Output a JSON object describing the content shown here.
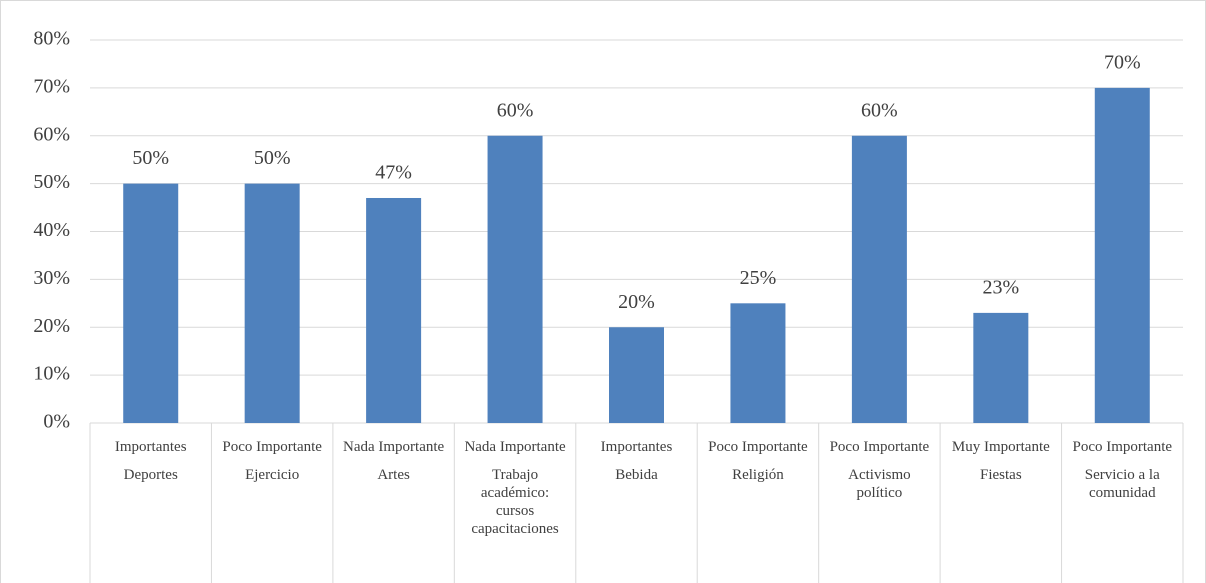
{
  "chart_data": {
    "type": "bar",
    "categories": [
      "Deportes",
      "Ejercicio",
      "Artes",
      "Trabajo académico: cursos capacitaciones",
      "Bebida",
      "Religión",
      "Activismo político",
      "Fiestas",
      "Servicio a la comunidad"
    ],
    "category_groups": [
      "Importantes",
      "Poco Importante",
      "Nada Importante",
      "Nada Importante",
      "Importantes",
      "Poco Importante",
      "Poco Importante",
      "Muy Importante",
      "Poco Importante"
    ],
    "values": [
      50,
      50,
      47,
      60,
      20,
      25,
      60,
      23,
      70
    ],
    "value_labels": [
      "50%",
      "50%",
      "47%",
      "60%",
      "20%",
      "25%",
      "60%",
      "23%",
      "70%"
    ],
    "color": "#4f81bd",
    "ylim": [
      0,
      80
    ],
    "yticks": [
      {
        "value": 0,
        "label": "0%"
      },
      {
        "value": 10,
        "label": "10%"
      },
      {
        "value": 20,
        "label": "20%"
      },
      {
        "value": 30,
        "label": "30%"
      },
      {
        "value": 40,
        "label": "40%"
      },
      {
        "value": 50,
        "label": "50%"
      },
      {
        "value": 60,
        "label": "60%"
      },
      {
        "value": 70,
        "label": "70%"
      },
      {
        "value": 80,
        "label": "80%"
      }
    ],
    "grid": true
  }
}
